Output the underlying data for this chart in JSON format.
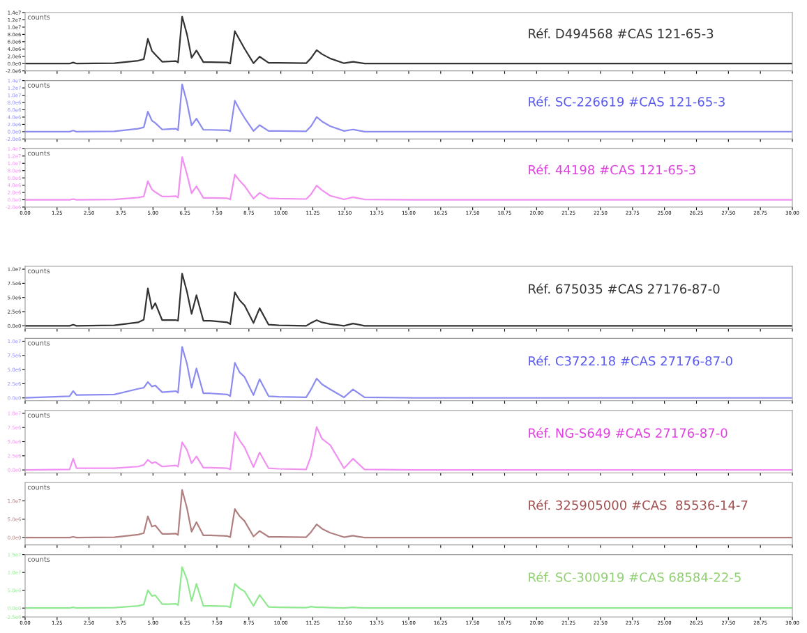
{
  "chart_data": [
    {
      "type": "line",
      "ylabel": "counts",
      "annotations": [
        "Réf. D494568 #CAS 121-65-3"
      ],
      "tick_labels": "y",
      "xlim": [
        0,
        30
      ],
      "ylim": [
        -2000000,
        14000000
      ],
      "yticks": [
        {
          "value": -2000000,
          "label": "-2.0e6"
        },
        {
          "value": 0,
          "label": "0.0e0"
        },
        {
          "value": 2000000,
          "label": "2.0e6"
        },
        {
          "value": 4000000,
          "label": "4.0e6"
        },
        {
          "value": 6000000,
          "label": "6.0e6"
        },
        {
          "value": 8000000,
          "label": "8.0e6"
        },
        {
          "value": 10000000,
          "label": "1.0e7"
        },
        {
          "value": 12000000,
          "label": "1.2e7"
        },
        {
          "value": 14000000,
          "label": "1.4e7"
        }
      ],
      "x": [
        0,
        1.74,
        1.88,
        2.01,
        3.49,
        4.42,
        4.64,
        4.8,
        4.96,
        5.09,
        5.36,
        5.63,
        5.9,
        5.98,
        6.14,
        6.33,
        6.51,
        6.7,
        6.97,
        7.24,
        7.91,
        8.02,
        8.2,
        8.39,
        8.58,
        8.93,
        9.17,
        9.52,
        9.92,
        10.99,
        11.18,
        11.4,
        11.61,
        11.93,
        12.47,
        12.82,
        13.27,
        15.28,
        30
      ],
      "series": [
        {
          "color": "#333333",
          "values": [
            0,
            0,
            300000.0,
            0,
            100000.0,
            800000.0,
            1200000.0,
            6800000.0,
            3500000.0,
            2500000.0,
            500000.0,
            600000.0,
            700000.0,
            300000.0,
            12900000.0,
            8000000.0,
            1600000.0,
            3600000.0,
            400000.0,
            400000.0,
            300000.0,
            0,
            8900000.0,
            6500000.0,
            4100000.0,
            100000.0,
            1900000.0,
            200000.0,
            200000.0,
            100000.0,
            1500000.0,
            3700000.0,
            2600000.0,
            1400000.0,
            100000.0,
            500000.0,
            0,
            0,
            0
          ]
        }
      ]
    },
    {
      "type": "line",
      "ylabel": "counts",
      "annotations": [
        "Réf. SC-226619 #CAS 121-65-3"
      ],
      "tick_labels": "y",
      "xlim": [
        0,
        30
      ],
      "ylim": [
        -2000000,
        14000000
      ],
      "yticks": [
        {
          "value": -2000000,
          "label": "-2.0e6"
        },
        {
          "value": 0,
          "label": "0.0e0"
        },
        {
          "value": 2000000,
          "label": "2.0e6"
        },
        {
          "value": 4000000,
          "label": "4.0e6"
        },
        {
          "value": 6000000,
          "label": "6.0e6"
        },
        {
          "value": 8000000,
          "label": "8.0e6"
        },
        {
          "value": 10000000,
          "label": "1.0e7"
        },
        {
          "value": 12000000,
          "label": "1.2e7"
        },
        {
          "value": 14000000,
          "label": "1.4e7"
        }
      ],
      "x": [
        0,
        1.74,
        1.88,
        2.01,
        3.49,
        4.42,
        4.64,
        4.8,
        4.96,
        5.09,
        5.36,
        5.63,
        5.9,
        5.98,
        6.14,
        6.33,
        6.51,
        6.7,
        6.97,
        7.24,
        7.91,
        8.02,
        8.2,
        8.39,
        8.58,
        8.93,
        9.17,
        9.52,
        9.92,
        10.99,
        11.18,
        11.4,
        11.61,
        11.93,
        12.47,
        12.82,
        13.27,
        15.28,
        30
      ],
      "series": [
        {
          "color": "#8c8cf0",
          "values": [
            0,
            0,
            300000.0,
            0,
            100000.0,
            800000.0,
            1200000.0,
            5500000.0,
            3000000.0,
            2400000.0,
            600000.0,
            700000.0,
            800000.0,
            400000.0,
            13000000.0,
            8000000.0,
            1700000.0,
            3600000.0,
            500000.0,
            500000.0,
            400000.0,
            100000.0,
            8500000.0,
            6000000.0,
            3800000.0,
            200000.0,
            1800000.0,
            200000.0,
            200000.0,
            100000.0,
            1500000.0,
            4000000.0,
            2800000.0,
            1500000.0,
            200000.0,
            600000.0,
            0,
            0,
            0
          ]
        }
      ]
    },
    {
      "type": "line",
      "ylabel": "counts",
      "annotations": [
        "Réf. 44198 #CAS 121-65-3"
      ],
      "xlim": [
        0,
        30
      ],
      "ylim": [
        -2000000,
        14000000
      ],
      "xticks": [
        {
          "value": 0,
          "label": "0.00"
        },
        {
          "value": 1.25,
          "label": "1.25"
        },
        {
          "value": 2.5,
          "label": "2.50"
        },
        {
          "value": 3.75,
          "label": "3.75"
        },
        {
          "value": 5,
          "label": "5.00"
        },
        {
          "value": 6.25,
          "label": "6.25"
        },
        {
          "value": 7.5,
          "label": "7.50"
        },
        {
          "value": 8.75,
          "label": "8.75"
        },
        {
          "value": 10,
          "label": "10.00"
        },
        {
          "value": 11.25,
          "label": "11.25"
        },
        {
          "value": 12.5,
          "label": "12.50"
        },
        {
          "value": 13.75,
          "label": "13.75"
        },
        {
          "value": 15,
          "label": "15.00"
        },
        {
          "value": 16.25,
          "label": "16.25"
        },
        {
          "value": 17.5,
          "label": "17.50"
        },
        {
          "value": 18.75,
          "label": "18.75"
        },
        {
          "value": 20,
          "label": "20.00"
        },
        {
          "value": 21.25,
          "label": "21.25"
        },
        {
          "value": 22.5,
          "label": "22.50"
        },
        {
          "value": 23.75,
          "label": "23.75"
        },
        {
          "value": 25,
          "label": "25.00"
        },
        {
          "value": 26.25,
          "label": "26.25"
        },
        {
          "value": 27.5,
          "label": "27.50"
        },
        {
          "value": 28.75,
          "label": "28.75"
        },
        {
          "value": 30,
          "label": "30.00"
        }
      ],
      "yticks": [
        {
          "value": -2000000,
          "label": "-2.0e6"
        },
        {
          "value": 0,
          "label": "0.0e0"
        },
        {
          "value": 2000000,
          "label": "2.0e6"
        },
        {
          "value": 4000000,
          "label": "4.0e6"
        },
        {
          "value": 6000000,
          "label": "6.0e6"
        },
        {
          "value": 8000000,
          "label": "8.0e6"
        },
        {
          "value": 10000000,
          "label": "1.0e7"
        },
        {
          "value": 12000000,
          "label": "1.2e7"
        },
        {
          "value": 14000000,
          "label": "1.4e7"
        }
      ],
      "x": [
        0,
        1.74,
        1.88,
        2.01,
        3.49,
        4.42,
        4.64,
        4.8,
        4.96,
        5.09,
        5.36,
        5.63,
        5.9,
        5.98,
        6.14,
        6.33,
        6.51,
        6.7,
        6.97,
        7.24,
        7.91,
        8.02,
        8.2,
        8.39,
        8.58,
        8.93,
        9.17,
        9.52,
        9.92,
        10.99,
        11.18,
        11.4,
        11.61,
        11.93,
        12.47,
        12.82,
        13.27,
        15.28,
        30
      ],
      "series": [
        {
          "color": "#f090f0",
          "values": [
            0,
            0,
            200000.0,
            0,
            100000.0,
            600000.0,
            900000.0,
            5100000.0,
            2800000.0,
            2100000.0,
            900000.0,
            900000.0,
            1000000.0,
            600000.0,
            11700000.0,
            7000000.0,
            1800000.0,
            3700000.0,
            500000.0,
            500000.0,
            400000.0,
            100000.0,
            6900000.0,
            5200000.0,
            3800000.0,
            300000.0,
            1900000.0,
            400000.0,
            300000.0,
            200000.0,
            1500000.0,
            3900000.0,
            2600000.0,
            1100000.0,
            100000.0,
            700000.0,
            100000.0,
            0,
            0
          ]
        }
      ]
    },
    {
      "type": "line",
      "ylabel": "counts",
      "annotations": [
        "Réf. 675035 #CAS 27176-87-0"
      ],
      "tick_labels": "y",
      "xlim": [
        0,
        30
      ],
      "ylim": [
        -500000,
        10500000
      ],
      "yticks": [
        {
          "value": 0,
          "label": "0.0e0"
        },
        {
          "value": 2500000,
          "label": "2.5e6"
        },
        {
          "value": 5000000,
          "label": "5.0e6"
        },
        {
          "value": 7500000,
          "label": "7.5e6"
        },
        {
          "value": 10000000,
          "label": "1.0e7"
        }
      ],
      "x": [
        0,
        1.74,
        1.88,
        2.01,
        3.49,
        4.42,
        4.64,
        4.8,
        4.96,
        5.09,
        5.36,
        5.63,
        5.9,
        5.98,
        6.14,
        6.33,
        6.51,
        6.7,
        6.97,
        7.24,
        7.91,
        8.02,
        8.2,
        8.39,
        8.58,
        8.93,
        9.17,
        9.52,
        9.92,
        10.99,
        11.18,
        11.4,
        11.61,
        11.93,
        12.47,
        12.82,
        13.27,
        15.28,
        30
      ],
      "series": [
        {
          "color": "#333333",
          "values": [
            0,
            0,
            200000.0,
            0,
            100000.0,
            600000.0,
            1100000.0,
            6600000.0,
            3000000.0,
            4000000.0,
            1000000.0,
            1000000.0,
            1000000.0,
            900000.0,
            9200000.0,
            6000000.0,
            2100000.0,
            5400000.0,
            900000.0,
            900000.0,
            600000.0,
            300000.0,
            5900000.0,
            4500000.0,
            3600000.0,
            500000.0,
            3100000.0,
            200000.0,
            100000.0,
            0,
            500000.0,
            1000000.0,
            600000.0,
            300000.0,
            0,
            400000.0,
            0,
            0,
            0
          ]
        }
      ]
    },
    {
      "type": "line",
      "ylabel": "counts",
      "annotations": [
        "Réf. C3722.18 #CAS 27176-87-0"
      ],
      "tick_labels": "y",
      "xlim": [
        0,
        30
      ],
      "ylim": [
        -500000,
        10500000
      ],
      "yticks": [
        {
          "value": 0,
          "label": "0.0e0"
        },
        {
          "value": 2500000,
          "label": "2.5e6"
        },
        {
          "value": 5000000,
          "label": "5.0e6"
        },
        {
          "value": 7500000,
          "label": "7.5e6"
        },
        {
          "value": 10000000,
          "label": "1.0e7"
        }
      ],
      "x": [
        0,
        1.74,
        1.88,
        2.01,
        3.49,
        4.42,
        4.64,
        4.8,
        4.96,
        5.09,
        5.36,
        5.63,
        5.9,
        5.98,
        6.14,
        6.33,
        6.51,
        6.7,
        6.97,
        7.24,
        7.91,
        8.02,
        8.2,
        8.39,
        8.58,
        8.93,
        9.17,
        9.52,
        9.92,
        10.99,
        11.18,
        11.4,
        11.61,
        11.93,
        12.47,
        12.82,
        13.27,
        15.28,
        30
      ],
      "series": [
        {
          "color": "#8c8cf0",
          "values": [
            0,
            300000.0,
            1200000.0,
            500000.0,
            600000.0,
            1600000.0,
            1800000.0,
            2800000.0,
            2000000.0,
            2200000.0,
            1000000.0,
            1100000.0,
            1200000.0,
            900000.0,
            9000000.0,
            6000000.0,
            1800000.0,
            5200000.0,
            800000.0,
            800000.0,
            600000.0,
            300000.0,
            6200000.0,
            4500000.0,
            3700000.0,
            500000.0,
            3300000.0,
            300000.0,
            200000.0,
            100000.0,
            1500000.0,
            3400000.0,
            2400000.0,
            1500000.0,
            100000.0,
            1500000.0,
            100000.0,
            0,
            0
          ]
        }
      ]
    },
    {
      "type": "line",
      "ylabel": "counts",
      "annotations": [
        "Réf. NG-S649 #CAS 27176-87-0"
      ],
      "tick_labels": "y",
      "xlim": [
        0,
        30
      ],
      "ylim": [
        -500000,
        10500000
      ],
      "yticks": [
        {
          "value": 0,
          "label": "0.0e0"
        },
        {
          "value": 2500000,
          "label": "2.5e6"
        },
        {
          "value": 5000000,
          "label": "5.0e6"
        },
        {
          "value": 7500000,
          "label": "7.5e6"
        },
        {
          "value": 10000000,
          "label": "1.0e7"
        }
      ],
      "x": [
        0,
        1.74,
        1.88,
        2.01,
        3.49,
        4.42,
        4.64,
        4.8,
        4.96,
        5.09,
        5.36,
        5.63,
        5.9,
        5.98,
        6.14,
        6.33,
        6.51,
        6.7,
        6.97,
        7.24,
        7.91,
        8.02,
        8.2,
        8.39,
        8.58,
        8.93,
        9.17,
        9.52,
        9.92,
        10.99,
        11.18,
        11.4,
        11.61,
        11.93,
        12.47,
        12.82,
        13.27,
        15.28,
        30
      ],
      "series": [
        {
          "color": "#f090f0",
          "values": [
            0,
            100000.0,
            2000000.0,
            300000.0,
            300000.0,
            600000.0,
            900000.0,
            1800000.0,
            1200000.0,
            1400000.0,
            600000.0,
            700000.0,
            800000.0,
            600000.0,
            4900000.0,
            3500000.0,
            1200000.0,
            2400000.0,
            400000.0,
            400000.0,
            300000.0,
            100000.0,
            6700000.0,
            5200000.0,
            4000000.0,
            500000.0,
            3100000.0,
            300000.0,
            200000.0,
            100000.0,
            2500000.0,
            7600000.0,
            5500000.0,
            4400000.0,
            300000.0,
            2000000.0,
            100000.0,
            0,
            0
          ]
        }
      ]
    },
    {
      "type": "line",
      "ylabel": "counts",
      "annotations": [
        "Réf. 325905000 #CAS  85536-14-7"
      ],
      "tick_labels": "y",
      "xlim": [
        0,
        30
      ],
      "ylim": [
        -2000000,
        15000000
      ],
      "yticks": [
        {
          "value": 0,
          "label": "0.0e0"
        },
        {
          "value": 5000000,
          "label": "5.0e6"
        },
        {
          "value": 10000000,
          "label": "1.0e7"
        }
      ],
      "x": [
        0,
        1.74,
        1.88,
        2.01,
        3.49,
        4.42,
        4.64,
        4.8,
        4.96,
        5.09,
        5.36,
        5.63,
        5.9,
        5.98,
        6.14,
        6.33,
        6.51,
        6.7,
        6.97,
        7.24,
        7.91,
        8.02,
        8.2,
        8.39,
        8.58,
        8.93,
        9.17,
        9.52,
        9.92,
        10.99,
        11.18,
        11.4,
        11.61,
        11.93,
        12.47,
        12.82,
        13.27,
        15.28,
        30
      ],
      "series": [
        {
          "color": "#b08080",
          "values": [
            0,
            0,
            200000.0,
            0,
            100000.0,
            800000.0,
            1200000.0,
            5800000.0,
            3000000.0,
            3300000.0,
            1000000.0,
            1000000.0,
            1100000.0,
            700000.0,
            13000000.0,
            8000000.0,
            1600000.0,
            4200000.0,
            600000.0,
            600000.0,
            400000.0,
            100000.0,
            7800000.0,
            5800000.0,
            4500000.0,
            300000.0,
            1800000.0,
            200000.0,
            200000.0,
            100000.0,
            1500000.0,
            3600000.0,
            2400000.0,
            1300000.0,
            100000.0,
            500000.0,
            0,
            0,
            0
          ]
        }
      ]
    },
    {
      "type": "line",
      "ylabel": "counts",
      "annotations": [
        "Réf. SC-300919 #CAS 68584-22-5"
      ],
      "xlim": [
        0,
        30
      ],
      "ylim": [
        -2500000,
        15000000
      ],
      "xticks": [
        {
          "value": 0,
          "label": "0.00"
        },
        {
          "value": 1.25,
          "label": "1.25"
        },
        {
          "value": 2.5,
          "label": "2.50"
        },
        {
          "value": 3.75,
          "label": "3.75"
        },
        {
          "value": 5,
          "label": "5.00"
        },
        {
          "value": 6.25,
          "label": "6.25"
        },
        {
          "value": 7.5,
          "label": "7.50"
        },
        {
          "value": 8.75,
          "label": "8.75"
        },
        {
          "value": 10,
          "label": "10.00"
        },
        {
          "value": 11.25,
          "label": "11.25"
        },
        {
          "value": 12.5,
          "label": "12.50"
        },
        {
          "value": 13.75,
          "label": "13.75"
        },
        {
          "value": 15,
          "label": "15.00"
        },
        {
          "value": 16.25,
          "label": "16.25"
        },
        {
          "value": 17.5,
          "label": "17.50"
        },
        {
          "value": 18.75,
          "label": "18.75"
        },
        {
          "value": 20,
          "label": "20.00"
        },
        {
          "value": 21.25,
          "label": "21.25"
        },
        {
          "value": 22.5,
          "label": "22.50"
        },
        {
          "value": 23.75,
          "label": "23.75"
        },
        {
          "value": 25,
          "label": "25.00"
        },
        {
          "value": 26.25,
          "label": "26.25"
        },
        {
          "value": 27.5,
          "label": "27.50"
        },
        {
          "value": 28.75,
          "label": "28.75"
        },
        {
          "value": 30,
          "label": "30.00"
        }
      ],
      "yticks": [
        {
          "value": -2500000,
          "label": "-2.5e6"
        },
        {
          "value": 0,
          "label": "0.0e0"
        },
        {
          "value": 5000000,
          "label": "5.0e6"
        },
        {
          "value": 10000000,
          "label": "1.0e7"
        },
        {
          "value": 15000000,
          "label": "1.5e7"
        }
      ],
      "x": [
        0,
        1.74,
        1.88,
        2.01,
        3.49,
        4.42,
        4.64,
        4.8,
        4.96,
        5.09,
        5.36,
        5.63,
        5.9,
        5.98,
        6.14,
        6.33,
        6.51,
        6.7,
        6.97,
        7.24,
        7.91,
        8.02,
        8.2,
        8.39,
        8.58,
        8.93,
        9.17,
        9.52,
        9.92,
        10.99,
        11.18,
        11.4,
        11.61,
        11.93,
        12.47,
        12.82,
        13.27,
        15.28,
        30
      ],
      "series": [
        {
          "color": "#90e890",
          "values": [
            0,
            0,
            200000.0,
            0,
            100000.0,
            600000.0,
            1000000.0,
            5000000.0,
            3400000.0,
            3600000.0,
            1100000.0,
            1100000.0,
            1200000.0,
            800000.0,
            11500000.0,
            8000000.0,
            2000000.0,
            6800000.0,
            600000.0,
            600000.0,
            500000.0,
            200000.0,
            6800000.0,
            5500000.0,
            4700000.0,
            600000.0,
            3700000.0,
            300000.0,
            200000.0,
            100000.0,
            400000.0,
            200000.0,
            200000.0,
            100000.0,
            0,
            200000.0,
            0,
            0,
            0
          ]
        }
      ]
    }
  ]
}
